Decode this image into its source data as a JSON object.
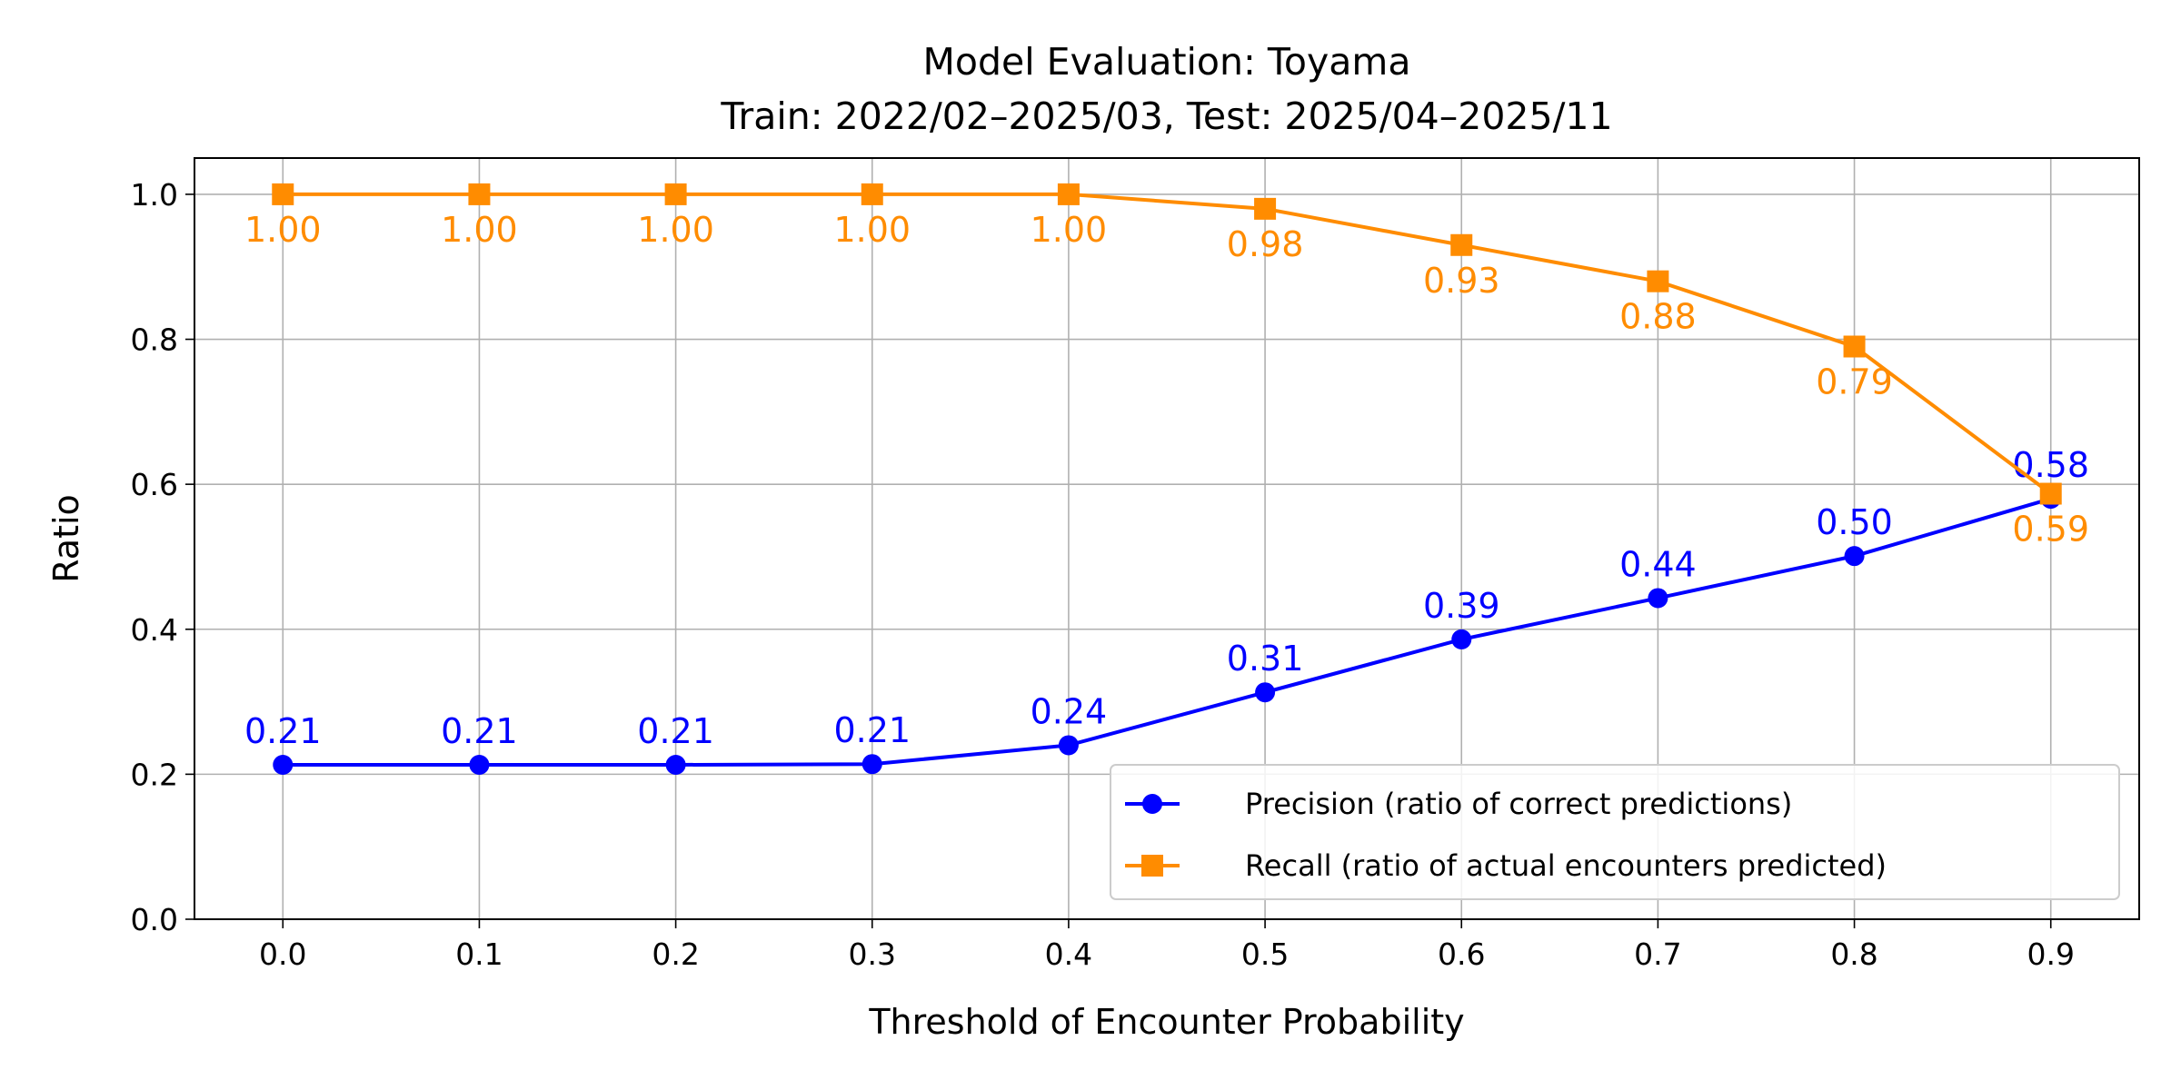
{
  "chart_data": {
    "type": "line",
    "title": "Model Evaluation: Toyama",
    "subtitle": "Train: 2022/02–2025/03, Test: 2025/04–2025/11",
    "xlabel": "Threshold of Encounter Probability",
    "ylabel": "Ratio",
    "x": [
      0.0,
      0.1,
      0.2,
      0.3,
      0.4,
      0.5,
      0.6,
      0.7,
      0.8,
      0.9
    ],
    "x_tick_labels": [
      "0.0",
      "0.1",
      "0.2",
      "0.3",
      "0.4",
      "0.5",
      "0.6",
      "0.7",
      "0.8",
      "0.9"
    ],
    "y_tick_labels": [
      "0.0",
      "0.2",
      "0.4",
      "0.6",
      "0.8",
      "1.0"
    ],
    "y_ticks": [
      0.0,
      0.2,
      0.4,
      0.6,
      0.8,
      1.0
    ],
    "xlim": [
      -0.045,
      0.945
    ],
    "ylim": [
      0.0,
      1.05
    ],
    "grid": true,
    "legend_position": "lower-right",
    "series": [
      {
        "name": "Precision (ratio of correct predictions)",
        "color": "#0000ff",
        "marker": "circle",
        "values": [
          0.213,
          0.213,
          0.213,
          0.214,
          0.24,
          0.313,
          0.386,
          0.443,
          0.501,
          0.58
        ],
        "labels": [
          "0.21",
          "0.21",
          "0.21",
          "0.21",
          "0.24",
          "0.31",
          "0.39",
          "0.44",
          "0.50",
          "0.58"
        ]
      },
      {
        "name": "Recall (ratio of actual encounters predicted)",
        "color": "#ff8c00",
        "marker": "square",
        "values": [
          1.0,
          1.0,
          1.0,
          1.0,
          1.0,
          0.98,
          0.93,
          0.88,
          0.79,
          0.587
        ],
        "labels": [
          "1.00",
          "1.00",
          "1.00",
          "1.00",
          "1.00",
          "0.98",
          "0.93",
          "0.88",
          "0.79",
          "0.59"
        ]
      }
    ]
  }
}
